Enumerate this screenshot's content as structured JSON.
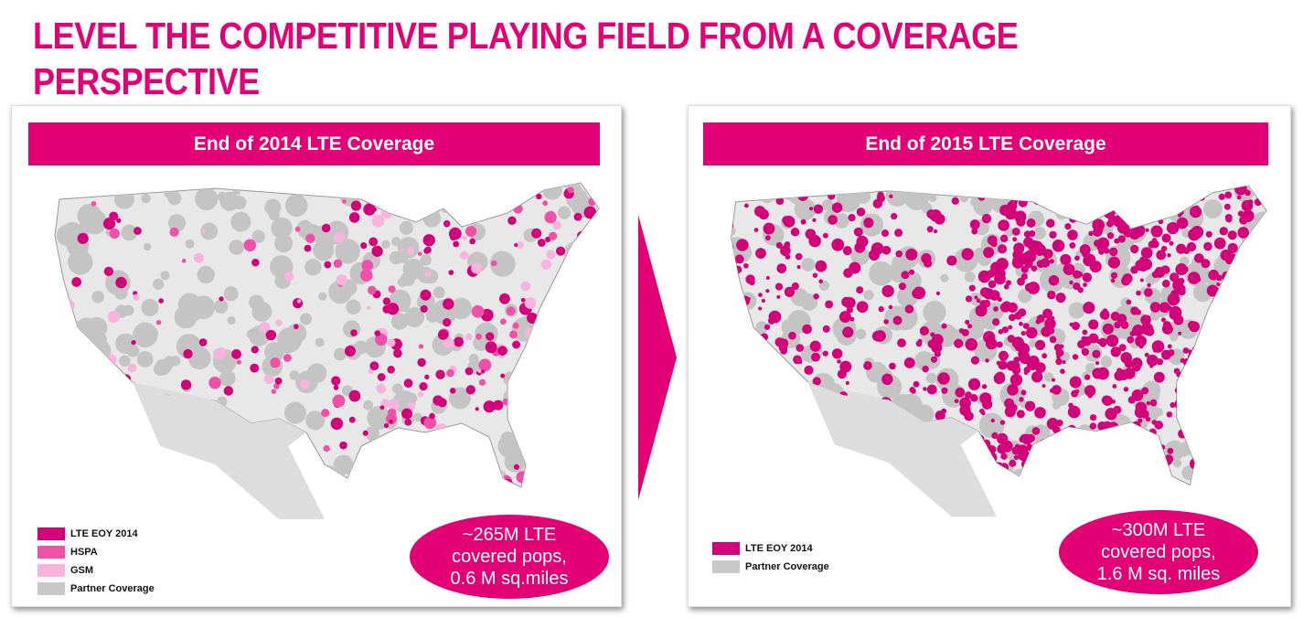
{
  "title": "LEVEL THE COMPETITIVE PLAYING FIELD FROM A COVERAGE PERSPECTIVE",
  "colors": {
    "accent": "#e20074",
    "hspa": "#f050a8",
    "gsm": "#f8b4dc",
    "partner": "#c8c8c8"
  },
  "left": {
    "header": "End of 2014 LTE Coverage",
    "legend": [
      "LTE EOY 2014",
      "HSPA",
      "GSM",
      "Partner Coverage"
    ],
    "callout": [
      "~265M LTE",
      "covered pops,",
      "0.6 M sq.miles"
    ]
  },
  "right": {
    "header": "End of 2015 LTE Coverage",
    "legend": [
      "LTE EOY 2014",
      "Partner Coverage"
    ],
    "callout": [
      "~300M LTE",
      "covered pops,",
      "1.6 M sq. miles"
    ]
  }
}
